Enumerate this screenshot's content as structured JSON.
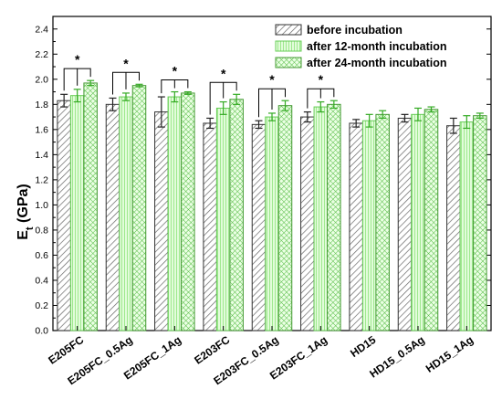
{
  "chart_data": {
    "type": "bar",
    "ylabel": "E",
    "ylabel_sub": "t",
    "ylabel_unit": " (GPa)",
    "ylim": [
      0.0,
      2.5
    ],
    "yticks": [
      "0.0",
      "0.2",
      "0.4",
      "0.6",
      "0.8",
      "1.0",
      "1.2",
      "1.4",
      "1.6",
      "1.8",
      "2.0",
      "2.2",
      "2.4"
    ],
    "grid": false,
    "legend_position": "top-right",
    "categories": [
      "E205FC",
      "E205FC_0.5Ag",
      "E205FC_1Ag",
      "E203FC",
      "E203FC_0.5Ag",
      "E203FC_1Ag",
      "HD15",
      "HD15_0.5Ag",
      "HD15_1Ag"
    ],
    "series": [
      {
        "name": "before incubation",
        "pattern": "diagonal-hatch",
        "color": "#555555",
        "values": [
          1.83,
          1.8,
          1.74,
          1.65,
          1.64,
          1.7,
          1.65,
          1.69,
          1.63
        ],
        "errors": [
          0.05,
          0.05,
          0.12,
          0.04,
          0.03,
          0.04,
          0.03,
          0.03,
          0.06
        ]
      },
      {
        "name": "after 12-month incubation",
        "pattern": "vertical-lines",
        "color": "#66dd55",
        "values": [
          1.87,
          1.86,
          1.86,
          1.77,
          1.7,
          1.78,
          1.67,
          1.72,
          1.66
        ],
        "errors": [
          0.05,
          0.03,
          0.04,
          0.05,
          0.03,
          0.04,
          0.05,
          0.05,
          0.05
        ]
      },
      {
        "name": "after 24-month incubation",
        "pattern": "crosshatch",
        "color": "#55cc44",
        "values": [
          1.97,
          1.95,
          1.89,
          1.84,
          1.79,
          1.8,
          1.72,
          1.76,
          1.71
        ],
        "errors": [
          0.02,
          0.01,
          0.01,
          0.04,
          0.04,
          0.03,
          0.03,
          0.02,
          0.02
        ]
      }
    ],
    "annotations": {
      "symbol": "*",
      "significant_categories": [
        0,
        1,
        2,
        3,
        4,
        5
      ]
    }
  }
}
